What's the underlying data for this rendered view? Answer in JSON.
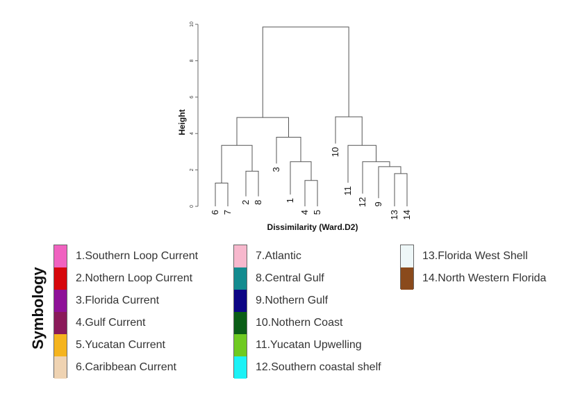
{
  "chart_data": {
    "type": "dendrogram",
    "ylabel": "Height",
    "xlabel": "Dissimilarity (Ward.D2)",
    "ylim": [
      0,
      10
    ],
    "yticks": [
      "0",
      "2",
      "4",
      "6",
      "8",
      "10"
    ],
    "leaves": [
      {
        "label": "6",
        "height": 0
      },
      {
        "label": "7",
        "height": 0
      },
      {
        "label": "2",
        "height": 0.55
      },
      {
        "label": "8",
        "height": 0.55
      },
      {
        "label": "3",
        "height": 2.35
      },
      {
        "label": "1",
        "height": 0.65
      },
      {
        "label": "4",
        "height": 0
      },
      {
        "label": "5",
        "height": 0
      },
      {
        "label": "10",
        "height": 3.45
      },
      {
        "label": "11",
        "height": 1.3
      },
      {
        "label": "12",
        "height": 0.7
      },
      {
        "label": "9",
        "height": 0.45
      },
      {
        "label": "13",
        "height": 0
      },
      {
        "label": "14",
        "height": 0
      }
    ],
    "merges": [
      {
        "left": "6",
        "right": "7",
        "height": 1.28
      },
      {
        "left": "2",
        "right": "8",
        "height": 1.93
      },
      {
        "left": "6-7",
        "right": "2-8",
        "height": 3.35
      },
      {
        "left": "4",
        "right": "5",
        "height": 1.42
      },
      {
        "left": "1",
        "right": "4-5",
        "height": 2.45
      },
      {
        "left": "3",
        "right": "1-4-5",
        "height": 3.8
      },
      {
        "left": "6-7-2-8",
        "right": "3-1-4-5",
        "height": 4.88
      },
      {
        "left": "13",
        "right": "14",
        "height": 1.8
      },
      {
        "left": "9",
        "right": "13-14",
        "height": 2.18
      },
      {
        "left": "12",
        "right": "9-13-14",
        "height": 2.45
      },
      {
        "left": "11",
        "right": "12-9-13-14",
        "height": 3.35
      },
      {
        "left": "10",
        "right": "11-12-9-13-14",
        "height": 4.92
      },
      {
        "left": "1-8 cluster",
        "right": "9-14 cluster",
        "height": 9.85
      }
    ]
  },
  "symbology": {
    "title": "Symbology",
    "columns": [
      [
        {
          "label": "1.Southern Loop Current",
          "color": "#f062c0"
        },
        {
          "label": "2.Nothern Loop Current",
          "color": "#d6070c"
        },
        {
          "label": "3.Florida Current",
          "color": "#8e1198"
        },
        {
          "label": "4.Gulf Current",
          "color": "#8a1a5a"
        },
        {
          "label": "5.Yucatan Current",
          "color": "#f5b41e"
        },
        {
          "label": "6.Caribbean Current",
          "color": "#efd3b2"
        }
      ],
      [
        {
          "label": "7.Atlantic",
          "color": "#f7b8cd"
        },
        {
          "label": "8.Central Gulf",
          "color": "#138b8f"
        },
        {
          "label": "9.Nothern Gulf",
          "color": "#0c0585"
        },
        {
          "label": "10.Nothern Coast",
          "color": "#0a5d16"
        },
        {
          "label": "11.Yucatan Upwelling",
          "color": "#6fca21"
        },
        {
          "label": "12.Southern coastal shelf",
          "color": "#1cf2f6"
        }
      ],
      [
        {
          "label": "13.Florida West Shell",
          "color": "#eef7f8"
        },
        {
          "label": "14.North Western Florida",
          "color": "#8a4a1c"
        }
      ]
    ]
  }
}
